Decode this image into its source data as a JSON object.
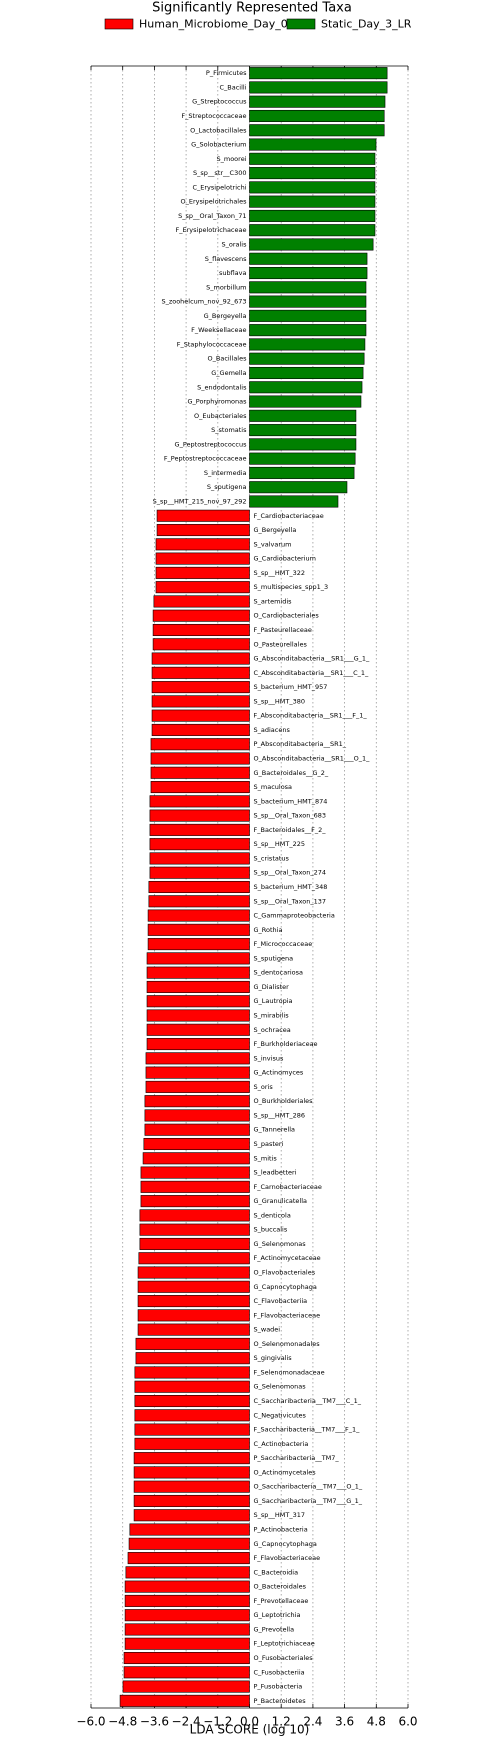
{
  "chart_data": {
    "type": "hbar-diverging",
    "title": "Significantly Represented Taxa",
    "xlabel": "LDA SCORE (log 10)",
    "grid": true,
    "xlim": [
      -6.0,
      6.0
    ],
    "xticks": [
      {
        "value": -6.0,
        "label": "−6.0"
      },
      {
        "value": -4.8,
        "label": "−4.8"
      },
      {
        "value": -3.6,
        "label": "−3.6"
      },
      {
        "value": -2.4,
        "label": "−2.4"
      },
      {
        "value": -1.2,
        "label": "−1.2"
      },
      {
        "value": 0.0,
        "label": "0.0"
      },
      1.2,
      2.4,
      3.6,
      4.8,
      {
        "value": 6.0,
        "label": "6.0"
      }
    ],
    "categories": [
      "P_Firmicutes",
      "C_Bacilli",
      "G_Streptococcus",
      "F_Streptococcaceae",
      "O_Lactobacillales",
      "G_Solobacterium",
      "S_moorei",
      "S_sp__str__C300",
      "C_Erysipelotrichi",
      "O_Erysipelotrichales",
      "S_sp__Oral_Taxon_71",
      "F_Erysipelotrichaceae",
      "S_oralis",
      "S_flavescens",
      "subflava",
      "S_morbillum",
      "S_zoohelcum_nov_92_673",
      "G_Bergeyella",
      "F_Weeksellaceae",
      "F_Staphylococcaceae",
      "O_Bacillales",
      "G_Gemella",
      "S_endodontalis",
      "G_Porphyromonas",
      "O_Eubacteriales",
      "S_stomatis",
      "G_Peptostreptococcus",
      "F_Peptostreptococcaceae",
      "S_intermedia",
      "S_sputigena",
      "S_sp__HMT_215_nov_97_292",
      "F_Cardiobacteriaceae",
      "G_Bergeyella",
      "S_valvarum",
      "G_Cardiobacterium",
      "S_sp__HMT_322",
      "S_multispecies_spp1_3",
      "S_artemidis",
      "O_Cardiobacteriales",
      "F_Pasteurellaceae",
      "O_Pasteurellales",
      "G_Absconditabacteria__SR1___G_1_",
      "C_Absconditabacteria__SR1___C_1_",
      "S_bacterium_HMT_957",
      "S_sp__HMT_380",
      "F_Absconditabacteria__SR1___F_1_",
      "S_adiacens",
      "P_Absconditabacteria__SR1_",
      "O_Absconditabacteria__SR1___O_1_",
      "G_Bacteroidales__G_2_",
      "S_maculosa",
      "S_bacterium_HMT_874",
      "S_sp__Oral_Taxon_683",
      "F_Bacteroidales__F_2_",
      "S_sp__HMT_225",
      "S_cristatus",
      "S_sp__Oral_Taxon_274",
      "S_bacterium_HMT_348",
      "S_sp__Oral_Taxon_137",
      "C_Gammaproteobacteria",
      "G_Rothia",
      "F_Micrococcaceae",
      "S_sputigena",
      "S_dentocariosa",
      "G_Dialister",
      "G_Lautropia",
      "S_mirabilis",
      "S_ochracea",
      "F_Burkholderiaceae",
      "S_invisus",
      "G_Actinomyces",
      "S_oris",
      "O_Burkholderiales",
      "S_sp__HMT_286",
      "G_Tannerella",
      "S_pasteri",
      "S_mitis",
      "S_leadbetteri",
      "F_Carnobacteriaceae",
      "G_Granulicatella",
      "S_denticola",
      "S_buccalis",
      "G_Selenomonas",
      "F_Actinomycetaceae",
      "O_Flavobacteriales",
      "G_Capnocytophaga",
      "C_Flavobacteriia",
      "F_Flavobacteriaceae",
      "S_wadei",
      "O_Selenomonadales",
      "S_gingivalis",
      "F_Selenomonadaceae",
      "G_Selenomonas",
      "C_Saccharibacteria__TM7___C_1_",
      "C_Negativicutes",
      "F_Saccharibacteria__TM7___F_1_",
      "C_Actinobacteria",
      "P_Saccharibacteria__TM7_",
      "O_Actinomycetales",
      "O_Saccharibacteria__TM7___O_1_",
      "G_Saccharibacteria__TM7___G_1_",
      "S_sp__HMT_317",
      "P_Actinobacteria",
      "G_Capnocytophaga",
      "F_Flavobacteriaceae",
      "C_Bacteroidia",
      "O_Bacteroidales",
      "F_Prevotellaceae",
      "G_Leptotrichia",
      "G_Prevotella",
      "F_Leptotrichiaceae",
      "O_Fusobacteriales",
      "C_Fusobacteriia",
      "P_Fusobacteria",
      "P_Bacteroidetes"
    ],
    "series": [
      {
        "name": "Human_Microbiome_Day_0",
        "color": "#ff0000",
        "values": [
          null,
          null,
          null,
          null,
          null,
          null,
          null,
          null,
          null,
          null,
          null,
          null,
          null,
          null,
          null,
          null,
          null,
          null,
          null,
          null,
          null,
          null,
          null,
          null,
          null,
          null,
          null,
          null,
          null,
          null,
          null,
          -3.5,
          -3.5,
          -3.54,
          -3.54,
          -3.54,
          -3.54,
          -3.62,
          -3.65,
          -3.65,
          -3.65,
          -3.69,
          -3.69,
          -3.69,
          -3.69,
          -3.69,
          -3.69,
          -3.73,
          -3.73,
          -3.73,
          -3.73,
          -3.77,
          -3.77,
          -3.77,
          -3.77,
          -3.77,
          -3.77,
          -3.81,
          -3.81,
          -3.84,
          -3.84,
          -3.84,
          -3.88,
          -3.88,
          -3.88,
          -3.88,
          -3.88,
          -3.88,
          -3.88,
          -3.92,
          -3.92,
          -3.92,
          -3.96,
          -3.96,
          -3.96,
          -4.0,
          -4.03,
          -4.11,
          -4.11,
          -4.11,
          -4.15,
          -4.15,
          -4.15,
          -4.19,
          -4.22,
          -4.22,
          -4.22,
          -4.22,
          -4.22,
          -4.3,
          -4.3,
          -4.34,
          -4.34,
          -4.34,
          -4.34,
          -4.34,
          -4.34,
          -4.37,
          -4.37,
          -4.37,
          -4.37,
          -4.37,
          -4.53,
          -4.56,
          -4.6,
          -4.68,
          -4.71,
          -4.71,
          -4.71,
          -4.71,
          -4.71,
          -4.75,
          -4.75,
          -4.79,
          -4.9
        ]
      },
      {
        "name": "Static_Day_3_LR",
        "color": "#008000",
        "values": [
          5.21,
          5.21,
          5.13,
          5.1,
          5.1,
          4.79,
          4.75,
          4.75,
          4.75,
          4.75,
          4.75,
          4.75,
          4.68,
          4.45,
          4.45,
          4.41,
          4.41,
          4.41,
          4.41,
          4.37,
          4.34,
          4.3,
          4.26,
          4.22,
          4.03,
          4.03,
          4.03,
          4.0,
          3.96,
          3.69,
          3.35,
          null,
          null,
          null,
          null,
          null,
          null,
          null,
          null,
          null,
          null,
          null,
          null,
          null,
          null,
          null,
          null,
          null,
          null,
          null,
          null,
          null,
          null,
          null,
          null,
          null,
          null,
          null,
          null,
          null,
          null,
          null,
          null,
          null,
          null,
          null,
          null,
          null,
          null,
          null,
          null,
          null,
          null,
          null,
          null,
          null,
          null,
          null,
          null,
          null,
          null,
          null,
          null,
          null,
          null,
          null,
          null,
          null,
          null,
          null,
          null,
          null,
          null,
          null,
          null,
          null,
          null,
          null,
          null,
          null,
          null,
          null,
          null,
          null,
          null,
          null,
          null,
          null,
          null,
          null,
          null,
          null,
          null,
          null,
          null
        ]
      }
    ]
  }
}
